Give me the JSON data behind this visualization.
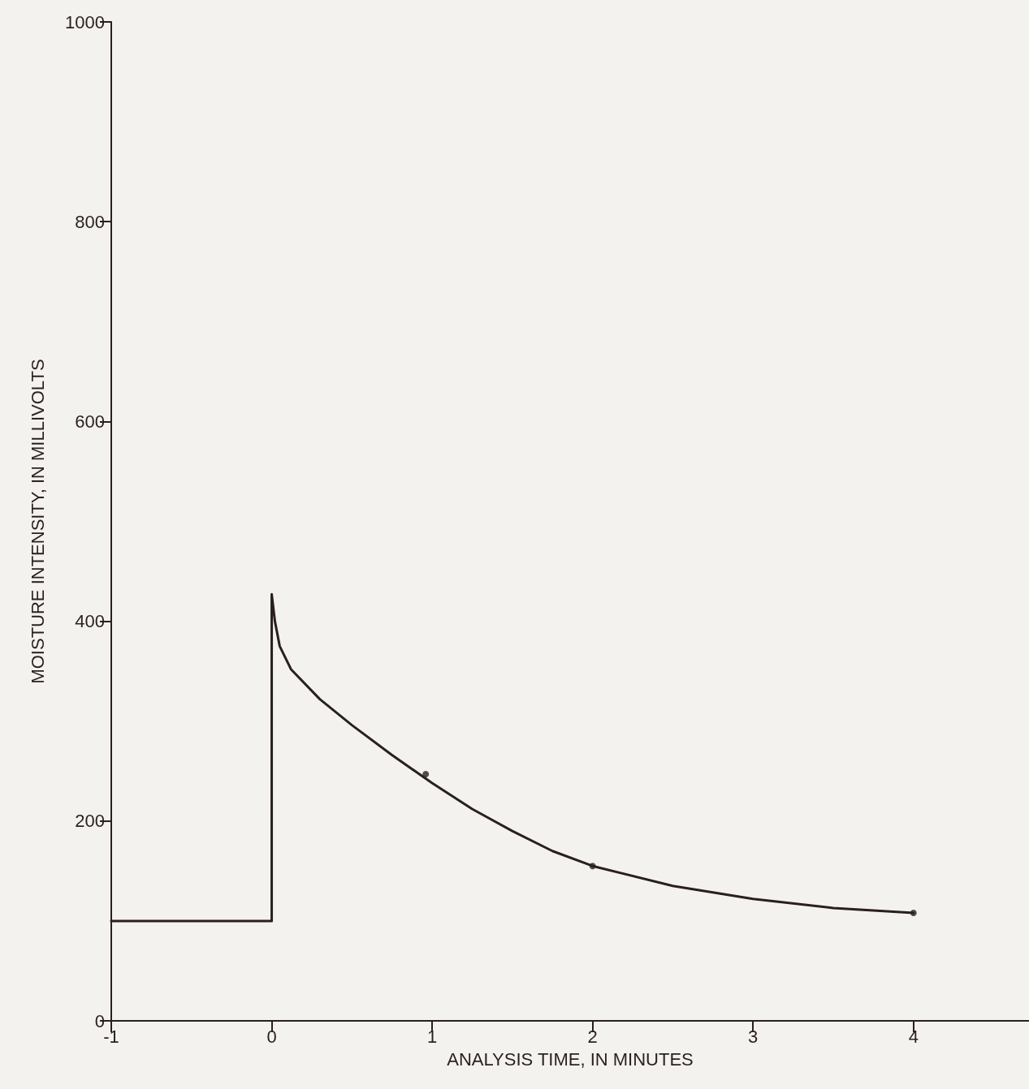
{
  "chart_data": {
    "type": "line",
    "xlabel": "ANALYSIS TIME, IN MINUTES",
    "ylabel": "MOISTURE INTENSITY, IN MILLIVOLTS",
    "xlim": [
      -1,
      4.72
    ],
    "xticks": [
      -1,
      0,
      1,
      2,
      3,
      4
    ],
    "ylim": [
      0,
      1000
    ],
    "yticks": [
      0,
      200,
      400,
      600,
      800,
      1000
    ],
    "grid": false,
    "line_style": "solid",
    "series": [
      {
        "color": "#2a1f1f",
        "marker": "none",
        "x": [
          -1,
          0,
          0,
          0.02,
          0.05,
          0.12,
          0.3,
          0.5,
          0.75,
          1,
          1.25,
          1.5,
          1.75,
          2,
          2.5,
          3,
          3.5,
          4
        ],
        "values": [
          100,
          100,
          427,
          400,
          375,
          352,
          322,
          296,
          266,
          238,
          212,
          190,
          170,
          155,
          135,
          122,
          113,
          108
        ]
      },
      {
        "type": "scatter",
        "color": "#2a1f1f",
        "marker": "circle",
        "x": [
          0.96,
          2,
          4
        ],
        "values": [
          247,
          155,
          108
        ]
      }
    ]
  }
}
